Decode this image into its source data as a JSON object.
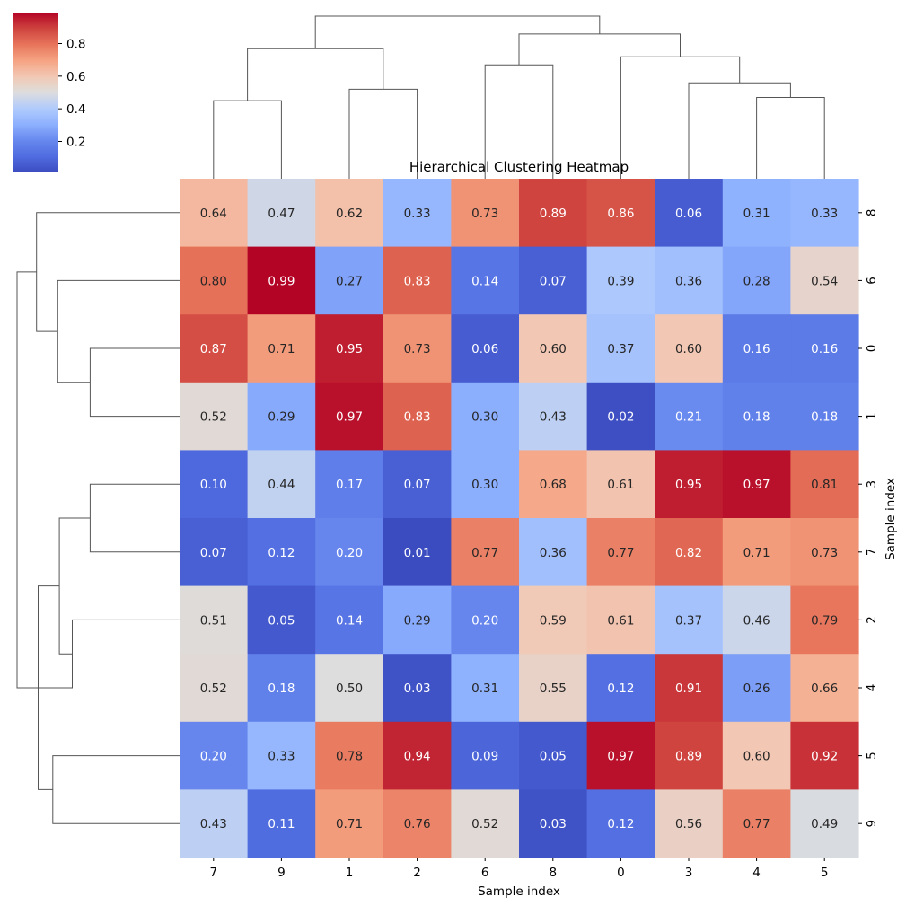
{
  "chart_data": {
    "type": "heatmap",
    "title": "Hierarchical Clustering Heatmap",
    "xlabel": "Sample index",
    "ylabel": "Sample index",
    "colormap": "coolwarm",
    "col_labels": [
      "7",
      "9",
      "1",
      "2",
      "6",
      "8",
      "0",
      "3",
      "4",
      "5"
    ],
    "row_labels": [
      "8",
      "6",
      "0",
      "1",
      "3",
      "7",
      "2",
      "4",
      "5",
      "9"
    ],
    "values": [
      [
        0.64,
        0.47,
        0.62,
        0.33,
        0.73,
        0.89,
        0.86,
        0.06,
        0.31,
        0.33
      ],
      [
        0.8,
        0.99,
        0.27,
        0.83,
        0.14,
        0.07,
        0.39,
        0.36,
        0.28,
        0.54
      ],
      [
        0.87,
        0.71,
        0.95,
        0.73,
        0.06,
        0.6,
        0.37,
        0.6,
        0.16,
        0.16
      ],
      [
        0.52,
        0.29,
        0.97,
        0.83,
        0.3,
        0.43,
        0.02,
        0.21,
        0.18,
        0.18
      ],
      [
        0.1,
        0.44,
        0.17,
        0.07,
        0.3,
        0.68,
        0.61,
        0.95,
        0.97,
        0.81
      ],
      [
        0.07,
        0.12,
        0.2,
        0.01,
        0.77,
        0.36,
        0.77,
        0.82,
        0.71,
        0.73
      ],
      [
        0.51,
        0.05,
        0.14,
        0.29,
        0.2,
        0.59,
        0.61,
        0.37,
        0.46,
        0.79
      ],
      [
        0.52,
        0.18,
        0.5,
        0.03,
        0.31,
        0.55,
        0.12,
        0.91,
        0.26,
        0.66
      ],
      [
        0.2,
        0.33,
        0.78,
        0.94,
        0.09,
        0.05,
        0.97,
        0.89,
        0.6,
        0.92
      ],
      [
        0.43,
        0.11,
        0.71,
        0.76,
        0.52,
        0.03,
        0.12,
        0.56,
        0.77,
        0.49
      ]
    ],
    "colorbar": {
      "range": [
        0.01,
        0.99
      ],
      "ticks": [
        "0.2",
        "0.4",
        "0.6",
        "0.8"
      ]
    },
    "dendrogram_columns": [
      [
        0.5,
        0.0,
        1.5,
        0.48
      ],
      [
        2.5,
        0.0,
        3.5,
        0.55
      ],
      [
        8.5,
        0.0,
        9.5,
        0.5
      ],
      [
        7.5,
        0.0,
        9.0,
        0.59
      ],
      [
        6.5,
        0.0,
        8.25,
        0.75
      ],
      [
        4.5,
        0.0,
        5.5,
        0.7
      ],
      [
        5.0,
        0.7,
        7.375,
        0.89
      ],
      [
        1.0,
        0.48,
        3.0,
        0.8
      ],
      [
        2.0,
        0.8,
        6.1875,
        1.0
      ]
    ],
    "dendrogram_rows": [
      [
        2.5,
        0.0,
        3.5,
        0.55
      ],
      [
        1.5,
        0.0,
        3.0,
        0.75
      ],
      [
        0.5,
        0.0,
        2.25,
        0.88
      ],
      [
        4.5,
        0.0,
        5.5,
        0.55
      ],
      [
        6.5,
        0.0,
        7.5,
        0.66
      ],
      [
        5.0,
        0.55,
        7.0,
        0.74
      ],
      [
        8.5,
        0.0,
        9.5,
        0.78
      ],
      [
        6.0,
        0.74,
        9.0,
        0.87
      ],
      [
        1.375,
        0.88,
        7.5,
        1.0
      ]
    ]
  }
}
